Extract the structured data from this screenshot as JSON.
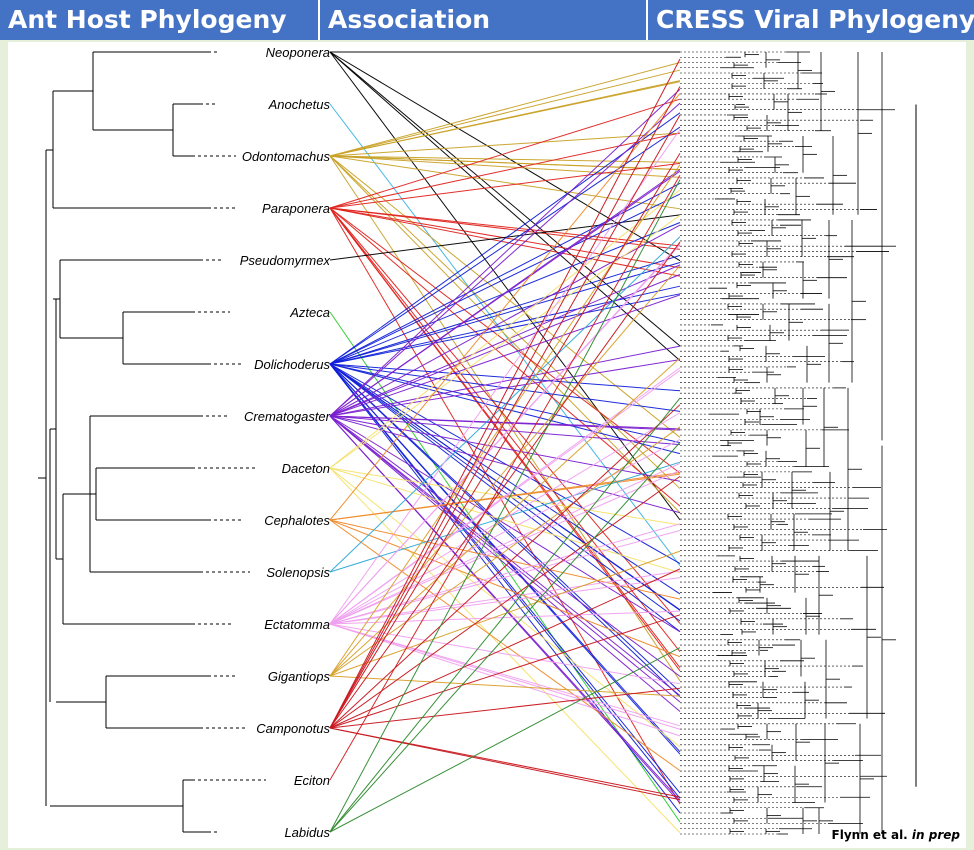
{
  "header": {
    "left_title": "Ant Host Phylogeny",
    "middle_title": "Association",
    "right_title": "CRESS Viral Phylogeny"
  },
  "credit": {
    "authors": "Flynn et al.",
    "status": "in prep"
  },
  "taxa": [
    {
      "name": "Neoponera",
      "color": "#000000"
    },
    {
      "name": "Anochetus",
      "color": "#3db5e6"
    },
    {
      "name": "Odontomachus",
      "color": "#c9a227"
    },
    {
      "name": "Paraponera",
      "color": "#e0231e"
    },
    {
      "name": "Pseudomyrmex",
      "color": "#000000"
    },
    {
      "name": "Azteca",
      "color": "#2ecc2e"
    },
    {
      "name": "Dolichoderus",
      "color": "#1020d8"
    },
    {
      "name": "Crematogaster",
      "color": "#7b1fd0"
    },
    {
      "name": "Daceton",
      "color": "#f5e26a"
    },
    {
      "name": "Cephalotes",
      "color": "#ef8a2a"
    },
    {
      "name": "Solenopsis",
      "color": "#2aa8d8"
    },
    {
      "name": "Ectatomma",
      "color": "#f0a0f0"
    },
    {
      "name": "Gigantiops",
      "color": "#d9a02a"
    },
    {
      "name": "Camponotus",
      "color": "#c8161d"
    },
    {
      "name": "Eciton",
      "color": "#d21f1f"
    },
    {
      "name": "Labidus",
      "color": "#2e8b2e"
    }
  ],
  "association_counts": [
    5,
    1,
    14,
    14,
    1,
    1,
    26,
    22,
    6,
    6,
    2,
    18,
    6,
    12,
    1,
    4
  ]
}
